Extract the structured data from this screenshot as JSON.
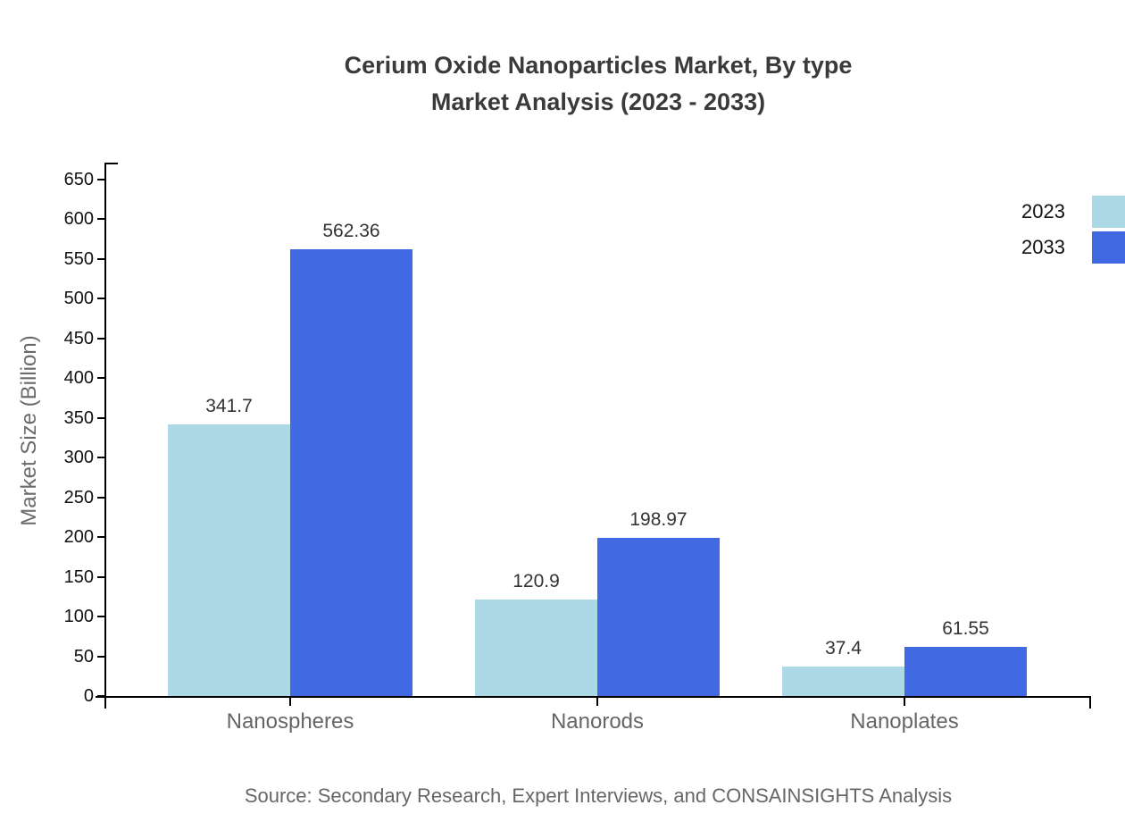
{
  "title": {
    "line1": "Cerium Oxide Nanoparticles Market, By type",
    "line2": "Market Analysis (2023 - 2033)"
  },
  "source": "Source: Secondary Research, Expert Interviews, and CONSAINSIGHTS Analysis",
  "chart_data": {
    "type": "bar",
    "title": "Cerium Oxide Nanoparticles Market, By type Market Analysis (2023 - 2033)",
    "categories": [
      "Nanospheres",
      "Nanorods",
      "Nanoplates"
    ],
    "series": [
      {
        "name": "2023",
        "color": "#add8e6",
        "values": [
          341.7,
          120.9,
          37.4
        ]
      },
      {
        "name": "2033",
        "color": "#4169e1",
        "values": [
          562.36,
          198.97,
          61.55
        ]
      }
    ],
    "xlabel": "",
    "ylabel": "Market Size (Billion)",
    "ylim": [
      0,
      650
    ],
    "ytick_step": 50,
    "yticks": [
      0,
      50,
      100,
      150,
      200,
      250,
      300,
      350,
      400,
      450,
      500,
      550,
      600,
      650
    ],
    "grid": false,
    "legend_position": "top-right",
    "value_label_decimals": "as-is",
    "value_labels": {
      "2023": [
        "341.7",
        "120.9",
        "37.4"
      ],
      "2033": [
        "562.36",
        "198.97",
        "61.55"
      ]
    }
  },
  "colors": {
    "series_2023": "#add8e6",
    "series_2033": "#4169e1",
    "title_text": "#3a3a3a",
    "tick_text": "#111111",
    "value_text": "#333333",
    "category_text": "#666666",
    "axis": "#000000",
    "background": "#ffffff"
  }
}
